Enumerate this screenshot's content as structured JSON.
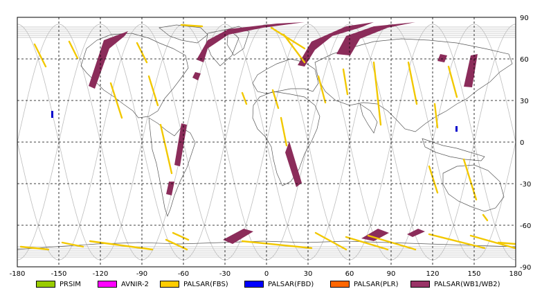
{
  "map": {
    "lon_ticks": [
      "-180",
      "-150",
      "-120",
      "-90",
      "-60",
      "-30",
      "0",
      "30",
      "60",
      "90",
      "120",
      "150",
      "180"
    ],
    "lat_ticks": [
      "90",
      "60",
      "30",
      "0",
      "-30",
      "-60",
      "-90"
    ],
    "lon_range": [
      -180,
      180
    ],
    "lat_range": [
      -90,
      90
    ],
    "grid": true
  },
  "legend": [
    {
      "label": "PRSIM",
      "color": "#99cc00"
    },
    {
      "label": "AVNIR-2",
      "color": "#ff00ff"
    },
    {
      "label": "PALSAR(FBS)",
      "color": "#ffcc00"
    },
    {
      "label": "PALSAR(FBD)",
      "color": "#0000ff"
    },
    {
      "label": "PALSAR(PLR)",
      "color": "#ff6600"
    },
    {
      "label": "PALSAR(WB1/WB2)",
      "color": "#993366"
    }
  ],
  "colors": {
    "fbs": "#f2c800",
    "fbd": "#0000cc",
    "wb": "#8b2c5a",
    "track": "#bbbbbb",
    "coast": "#555555",
    "grid": "#000000"
  }
}
